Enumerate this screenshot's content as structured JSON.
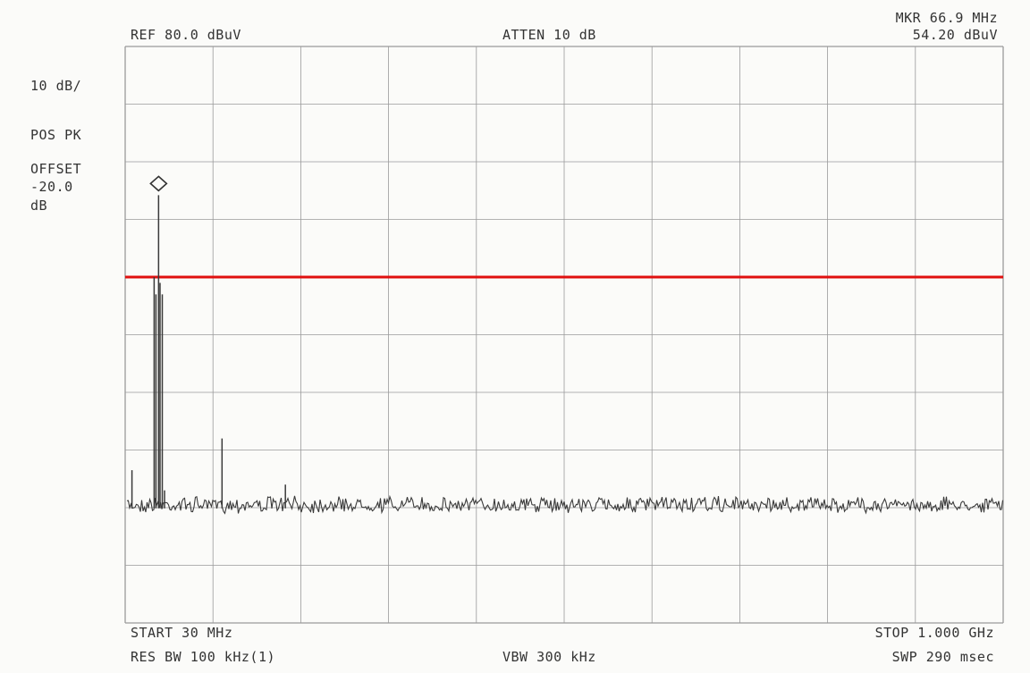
{
  "header": {
    "ref": "REF  80.0 dBuV",
    "atten": "ATTEN 10 dB",
    "marker_freq": "MKR 66.9 MHz",
    "marker_level": "54.20 dBuV"
  },
  "left_panel": {
    "scale": "10 dB/",
    "detector": "POS PK",
    "offset_title": "OFFSET",
    "offset_value": "-20.0",
    "offset_unit": "dB"
  },
  "footer": {
    "start": "START 30 MHz",
    "stop": "STOP 1.000 GHz",
    "rbw": "RES BW 100 kHz(1)",
    "vbw": "VBW 300 kHz",
    "sweep": "SWP 290 msec"
  },
  "colors": {
    "grid": "#9a9a9a",
    "trace": "#3a3a3a",
    "limit_line": "#e01010",
    "background": "#fbfbf9"
  },
  "chart_data": {
    "type": "line",
    "x_start_mhz": 30,
    "x_stop_mhz": 1000,
    "ylim_dbuv": [
      -20,
      80
    ],
    "y_divisions": 10,
    "x_divisions": 10,
    "grid": true,
    "limit_line_dbuv": 40,
    "marker": {
      "freq_mhz": 66.9,
      "level_dbuv": 54.2
    },
    "noise_floor_dbuv": 0.5,
    "spikes": [
      {
        "freq_mhz": 37.5,
        "level_dbuv": 6.5
      },
      {
        "freq_mhz": 62,
        "level_dbuv": 40
      },
      {
        "freq_mhz": 64,
        "level_dbuv": 37
      },
      {
        "freq_mhz": 66.9,
        "level_dbuv": 54.2
      },
      {
        "freq_mhz": 68.5,
        "level_dbuv": 39
      },
      {
        "freq_mhz": 71,
        "level_dbuv": 37
      },
      {
        "freq_mhz": 73.5,
        "level_dbuv": 3
      },
      {
        "freq_mhz": 137,
        "level_dbuv": 12
      },
      {
        "freq_mhz": 207,
        "level_dbuv": 4
      }
    ]
  }
}
